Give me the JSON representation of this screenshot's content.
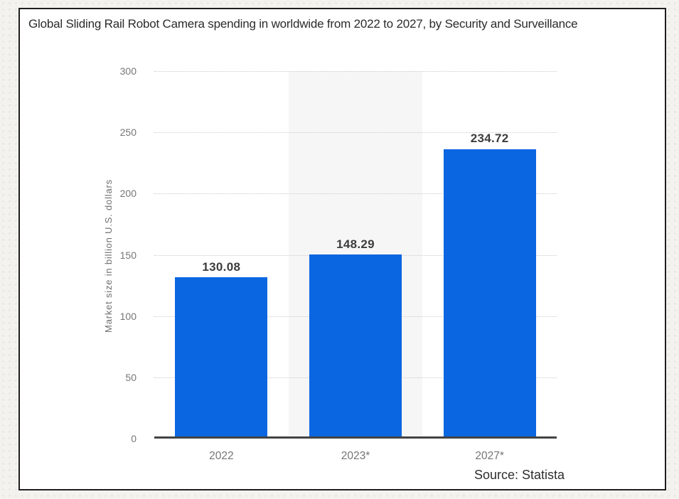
{
  "title": "Global Sliding Rail Robot Camera spending in worldwide from 2022 to 2027, by Security and Surveillance",
  "source": "Source: Statista",
  "chart_data": {
    "type": "bar",
    "title": "Global Sliding Rail Robot Camera spending in worldwide from 2022 to 2027, by Security and Surveillance",
    "categories": [
      "2022",
      "2023*",
      "2027*"
    ],
    "values": [
      130.08,
      148.29,
      234.72
    ],
    "value_labels": [
      "130.08",
      "148.29",
      "234.72"
    ],
    "xlabel": "",
    "ylabel": "Market size in billion U.S. dollars",
    "ylim": [
      0,
      300
    ],
    "yticks": [
      0,
      50,
      100,
      150,
      200,
      250,
      300
    ],
    "grid": "horizontal-dotted",
    "legend_position": "none",
    "highlight_band_index": 1,
    "bar_color": "#0b66e2",
    "band_color": "#f6f6f6",
    "axis_color": "#434343",
    "grid_color": "#cbcbcb"
  },
  "colors": {
    "frame_border": "#1f1f1f",
    "card_background": "#ffffff",
    "page_background": "#f3f2ef",
    "title_text": "#2b2b2b",
    "tick_text": "#767676",
    "value_text": "#3d3d3d",
    "source_text": "#2e2e2e"
  }
}
